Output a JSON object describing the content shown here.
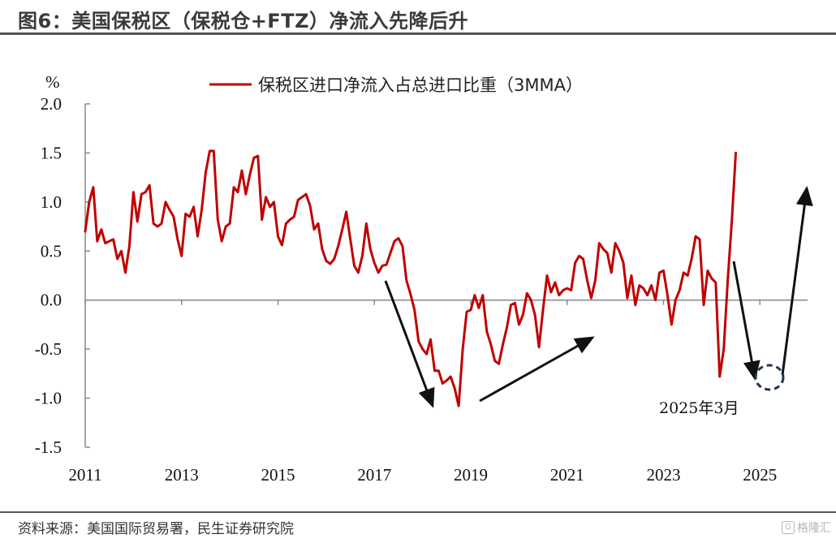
{
  "title": "图6：美国保税区（保税仓+FTZ）净流入先降后升",
  "source": "资料来源：美国国际贸易署，民生证券研究院",
  "watermark": "格隆汇",
  "colors": {
    "line": "#c00000",
    "axis": "#888888",
    "arrow": "#111111",
    "circle": "#1f3550"
  },
  "chart_data": {
    "type": "line",
    "ylabel": "%",
    "ylim": [
      -1.5,
      2.0
    ],
    "yticks": [
      "2.0",
      "1.5",
      "1.0",
      "0.5",
      "0.0",
      "-0.5",
      "-1.0",
      "-1.5"
    ],
    "xticks": [
      "2011",
      "2013",
      "2015",
      "2017",
      "2019",
      "2021",
      "2023",
      "2025"
    ],
    "x_start_year": 2011,
    "x_end_year": 2025.99,
    "series": [
      {
        "name": "保税区进口净流入占总进口比重（3MMA）",
        "values": [
          0.7,
          1.0,
          1.15,
          0.6,
          0.72,
          0.58,
          0.6,
          0.62,
          0.42,
          0.5,
          0.28,
          0.55,
          1.1,
          0.8,
          1.08,
          1.1,
          1.17,
          0.78,
          0.75,
          0.78,
          1.0,
          0.92,
          0.85,
          0.62,
          0.45,
          0.88,
          0.85,
          0.95,
          0.65,
          0.92,
          1.3,
          1.52,
          1.52,
          0.82,
          0.6,
          0.75,
          0.78,
          1.15,
          1.1,
          1.32,
          1.08,
          1.28,
          1.45,
          1.47,
          0.82,
          1.05,
          0.95,
          1.0,
          0.65,
          0.56,
          0.78,
          0.82,
          0.85,
          1.02,
          1.05,
          1.08,
          0.96,
          0.72,
          0.78,
          0.52,
          0.4,
          0.37,
          0.42,
          0.55,
          0.72,
          0.9,
          0.62,
          0.35,
          0.28,
          0.45,
          0.78,
          0.52,
          0.38,
          0.28,
          0.35,
          0.36,
          0.48,
          0.6,
          0.63,
          0.55,
          0.2,
          0.06,
          -0.1,
          -0.42,
          -0.5,
          -0.55,
          -0.4,
          -0.72,
          -0.72,
          -0.85,
          -0.82,
          -0.78,
          -0.9,
          -1.08,
          -0.5,
          -0.12,
          -0.1,
          0.05,
          -0.08,
          0.05,
          -0.32,
          -0.45,
          -0.62,
          -0.65,
          -0.45,
          -0.28,
          -0.05,
          -0.03,
          -0.25,
          -0.15,
          0.07,
          0.0,
          -0.15,
          -0.48,
          -0.1,
          0.25,
          0.08,
          0.18,
          0.05,
          0.1,
          0.12,
          0.1,
          0.38,
          0.45,
          0.42,
          0.2,
          0.02,
          0.2,
          0.58,
          0.52,
          0.48,
          0.28,
          0.58,
          0.5,
          0.38,
          0.02,
          0.25,
          -0.05,
          0.15,
          0.12,
          0.05,
          0.15,
          0.0,
          0.28,
          0.3,
          0.05,
          -0.25,
          0.0,
          0.1,
          0.28,
          0.25,
          0.42,
          0.65,
          0.62,
          -0.05,
          0.3,
          0.22,
          0.18,
          -0.78,
          -0.5,
          0.2,
          0.8,
          1.5
        ]
      }
    ],
    "annotations": [
      {
        "text": "2025年3月"
      }
    ]
  }
}
